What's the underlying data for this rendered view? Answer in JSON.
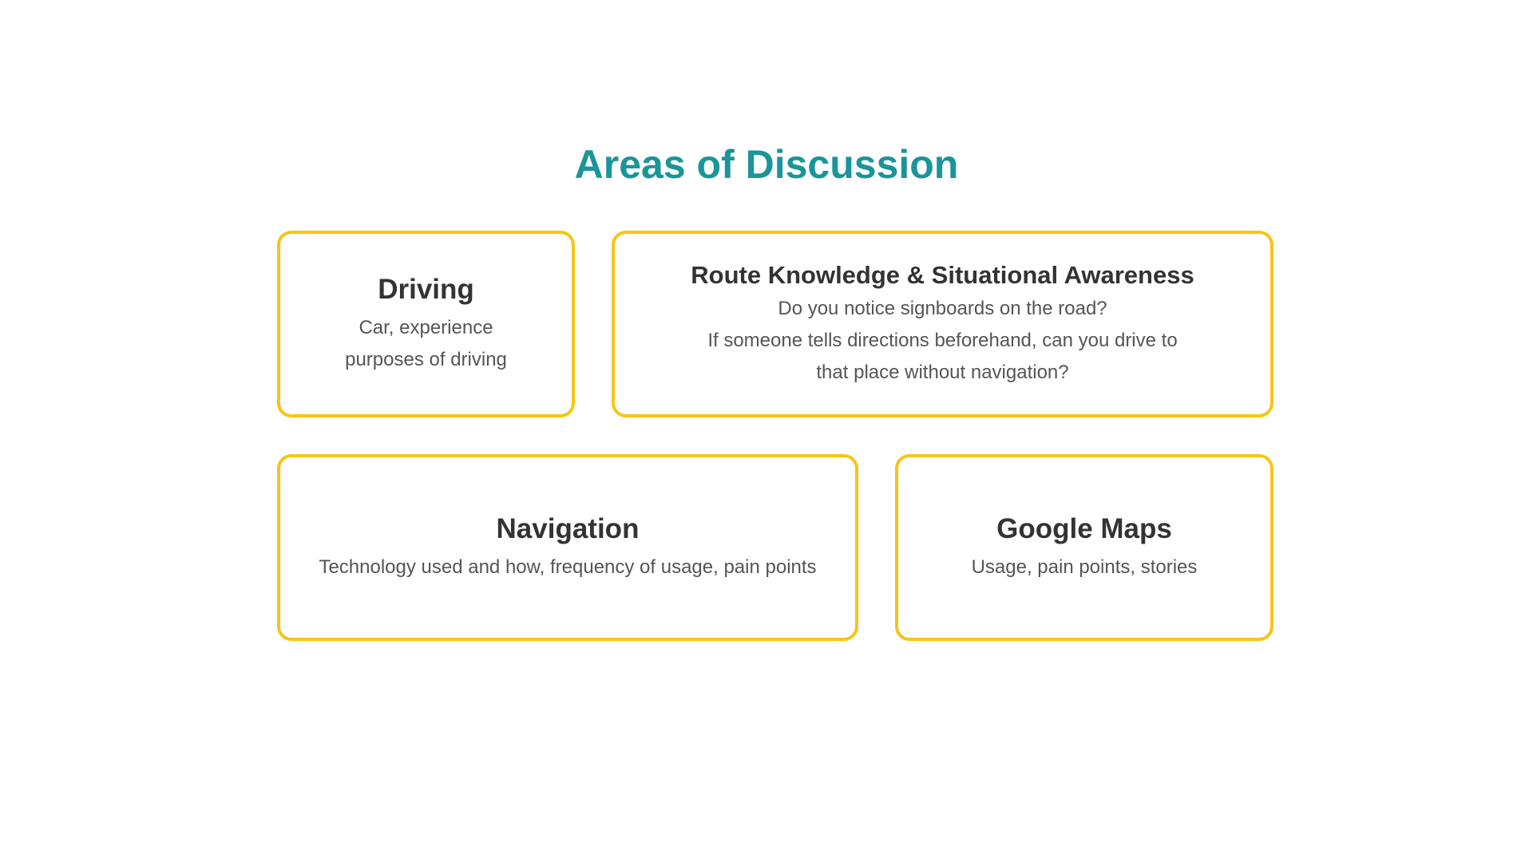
{
  "slide": {
    "title": "Areas of Discussion",
    "title_color": "#1a9599",
    "card_border_color": "#f5c518",
    "cards": [
      {
        "heading": "Driving",
        "lines": [
          "Car, experience",
          "purposes of driving"
        ]
      },
      {
        "heading": "Route Knowledge & Situational Awareness",
        "lines": [
          "Do you notice signboards on the road?",
          "If someone tells directions beforehand, can you drive to",
          "that place without navigation?"
        ]
      },
      {
        "heading": "Navigation",
        "lines": [
          "Technology used and how, frequency of usage, pain points"
        ]
      },
      {
        "heading": "Google Maps",
        "lines": [
          "Usage, pain points, stories"
        ]
      }
    ]
  }
}
